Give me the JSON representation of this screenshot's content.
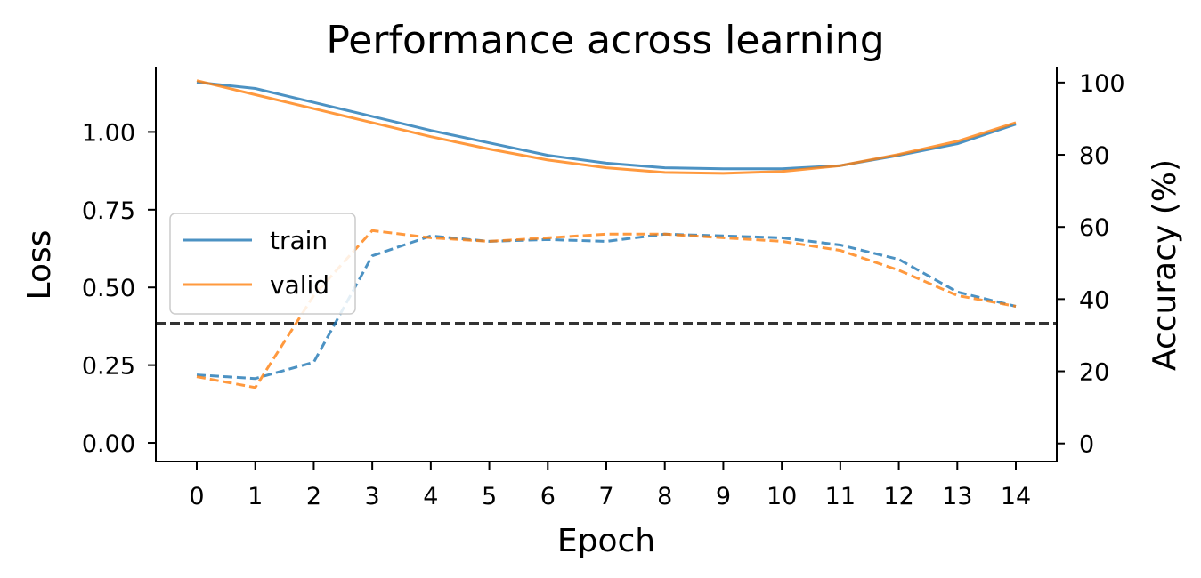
{
  "chart_data": {
    "type": "line",
    "title": "Performance across learning",
    "xlabel": "Epoch",
    "ylabel": "Loss",
    "y2label": "Accuracy (%)",
    "x": [
      0,
      1,
      2,
      3,
      4,
      5,
      6,
      7,
      8,
      9,
      10,
      11,
      12,
      13,
      14
    ],
    "xlim": [
      -0.7,
      14.7
    ],
    "ylim": [
      -0.06,
      1.21
    ],
    "y2lim": [
      -5,
      104.4
    ],
    "x_ticks": [
      "0",
      "1",
      "2",
      "3",
      "4",
      "5",
      "6",
      "7",
      "8",
      "9",
      "10",
      "11",
      "12",
      "13",
      "14"
    ],
    "y_ticks": [
      "0.00",
      "0.25",
      "0.50",
      "0.75",
      "1.00"
    ],
    "y2_ticks": [
      "0",
      "20",
      "40",
      "60",
      "80",
      "100"
    ],
    "grid": false,
    "legend": {
      "placement": "center-left",
      "entries": [
        "train",
        "valid"
      ]
    },
    "series": [
      {
        "name": "train",
        "metric": "loss",
        "axis": "left",
        "style": "solid",
        "color": "#1f77b4",
        "values": [
          1.16,
          1.14,
          1.095,
          1.05,
          1.005,
          0.965,
          0.925,
          0.9,
          0.885,
          0.882,
          0.882,
          0.892,
          0.925,
          0.962,
          1.025
        ]
      },
      {
        "name": "valid",
        "metric": "loss",
        "axis": "left",
        "style": "solid",
        "color": "#ff7f0e",
        "values": [
          1.165,
          1.12,
          1.075,
          1.03,
          0.985,
          0.945,
          0.91,
          0.885,
          0.87,
          0.867,
          0.873,
          0.892,
          0.928,
          0.97,
          1.03
        ]
      },
      {
        "name": "train",
        "metric": "accuracy",
        "axis": "right",
        "style": "dashed",
        "color": "#1f77b4",
        "values": [
          19,
          18,
          22.5,
          52,
          57.5,
          56,
          56.5,
          56,
          58,
          57.5,
          57,
          55,
          51,
          42,
          38
        ]
      },
      {
        "name": "valid",
        "metric": "accuracy",
        "axis": "right",
        "style": "dashed",
        "color": "#ff7f0e",
        "values": [
          18.5,
          15.5,
          41,
          59,
          57,
          56,
          57,
          58,
          58,
          57,
          56,
          53.5,
          48,
          41,
          38
        ]
      }
    ],
    "reference_line": {
      "axis": "right",
      "value": 33.3,
      "style": "dashed",
      "color": "#000000"
    }
  }
}
